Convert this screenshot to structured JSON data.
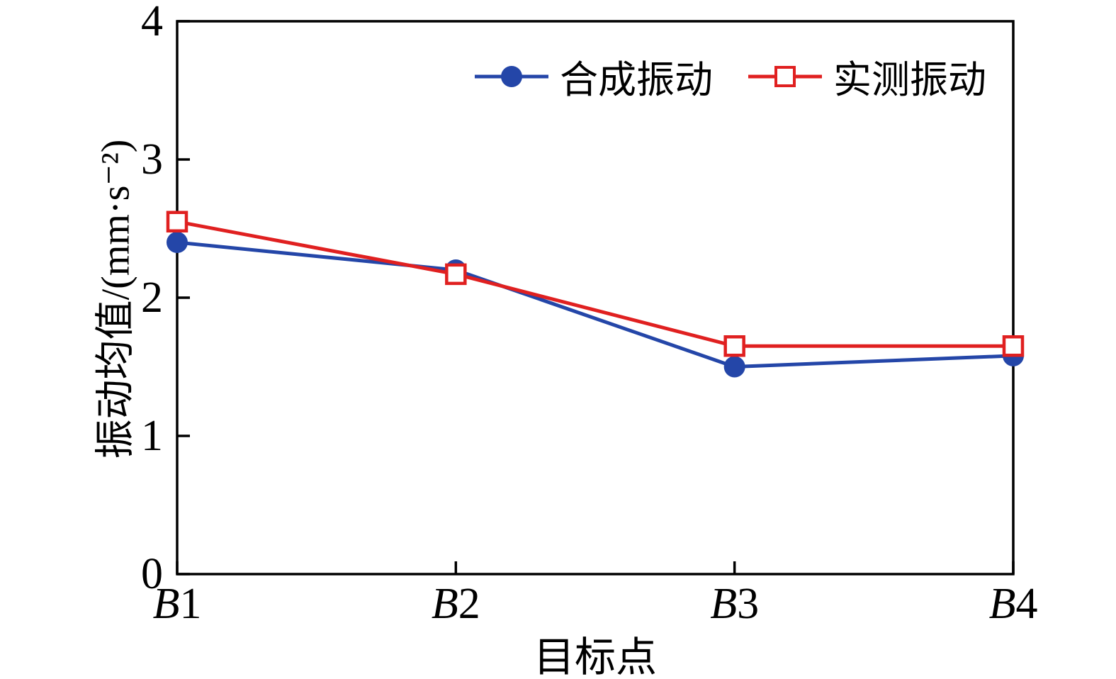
{
  "chart_data": {
    "type": "line",
    "categories": [
      "B1",
      "B2",
      "B3",
      "B4"
    ],
    "series": [
      {
        "name": "合成振动",
        "marker": "circle-filled",
        "color": "#2446a8",
        "values": [
          2.4,
          2.2,
          1.5,
          1.58
        ]
      },
      {
        "name": "实测振动",
        "marker": "square-open",
        "color": "#e02020",
        "values": [
          2.55,
          2.17,
          1.65,
          1.65
        ]
      }
    ],
    "title": "",
    "xlabel": "目标点",
    "ylabel": "振动均值/(mm·s⁻²)",
    "ylim": [
      0,
      4
    ],
    "yticks": [
      0,
      1,
      2,
      3,
      4
    ],
    "grid": false,
    "legend_position": "top-center-inside"
  }
}
